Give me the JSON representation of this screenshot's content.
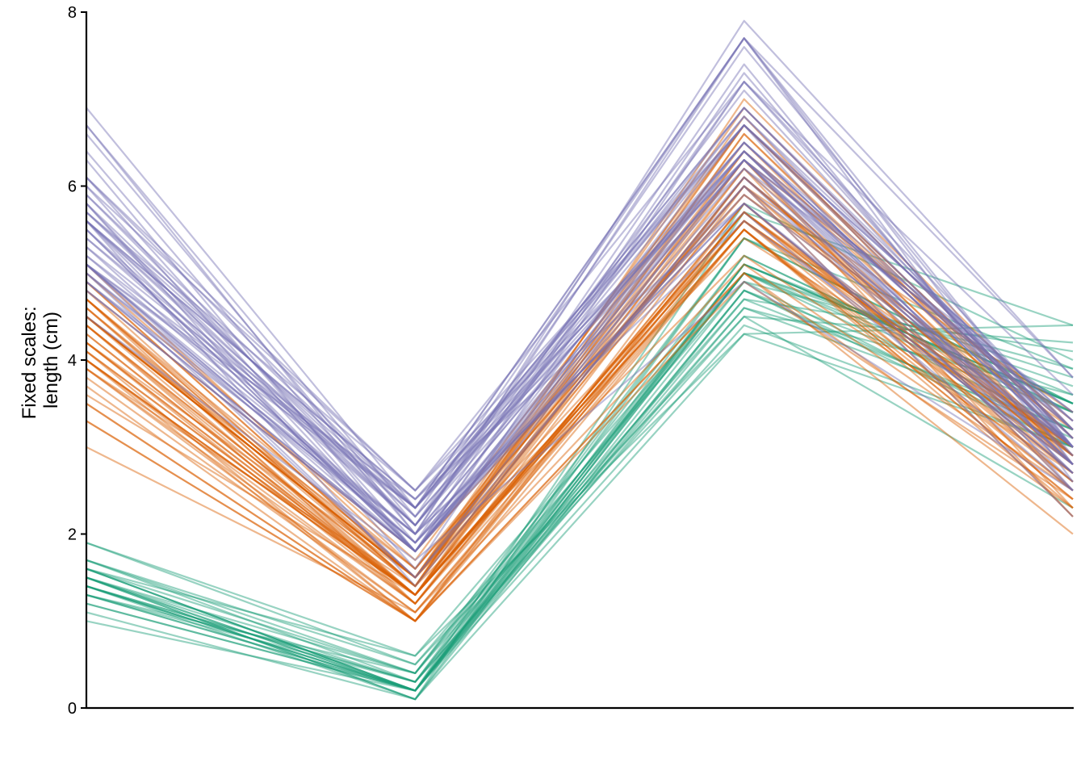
{
  "chart_data": {
    "type": "line",
    "title": "",
    "xlabel": "",
    "ylabel_lines": [
      "Fixed scales:",
      "length (cm)"
    ],
    "x": [
      1,
      2,
      3,
      4
    ],
    "ylim": [
      0,
      8
    ],
    "yticks": [
      "0",
      "2",
      "4",
      "6",
      "8"
    ],
    "grid": false,
    "legend": "none",
    "groups": [
      {
        "color": "#1b9e77",
        "opacity": 0.45,
        "values": [
          [
            1.9,
            0.6,
            4.3,
            4.4
          ],
          [
            1.9,
            0.5,
            4.5,
            4.2
          ],
          [
            1.7,
            0.4,
            4.7,
            4.1
          ],
          [
            1.7,
            0.5,
            4.9,
            3.9
          ],
          [
            1.7,
            0.3,
            5.0,
            3.8
          ],
          [
            1.6,
            0.4,
            5.0,
            3.7
          ],
          [
            1.6,
            0.2,
            5.1,
            3.6
          ],
          [
            1.6,
            0.2,
            5.4,
            3.5
          ],
          [
            1.5,
            0.4,
            5.2,
            3.4
          ],
          [
            1.5,
            0.3,
            5.4,
            3.5
          ],
          [
            1.5,
            0.2,
            5.0,
            3.4
          ],
          [
            1.5,
            0.2,
            4.8,
            3.1
          ],
          [
            1.5,
            0.1,
            5.1,
            3.5
          ],
          [
            1.4,
            0.3,
            4.6,
            3.2
          ],
          [
            1.4,
            0.2,
            5.1,
            3.5
          ],
          [
            1.4,
            0.2,
            4.9,
            3.0
          ],
          [
            1.4,
            0.1,
            4.8,
            3.0
          ],
          [
            1.3,
            0.2,
            4.7,
            3.2
          ],
          [
            1.3,
            0.4,
            5.4,
            3.9
          ],
          [
            1.3,
            0.3,
            4.5,
            2.3
          ],
          [
            1.2,
            0.2,
            5.8,
            4.0
          ],
          [
            1.2,
            0.2,
            5.0,
            3.2
          ],
          [
            1.1,
            0.1,
            4.3,
            3.0
          ],
          [
            1.0,
            0.2,
            4.6,
            3.6
          ],
          [
            1.4,
            0.2,
            5.2,
            3.4
          ],
          [
            1.6,
            0.6,
            5.0,
            3.5
          ],
          [
            1.5,
            0.1,
            5.7,
            4.4
          ],
          [
            1.3,
            0.2,
            4.4,
            3.0
          ],
          [
            1.4,
            0.3,
            5.1,
            3.5
          ],
          [
            1.6,
            0.2,
            4.8,
            3.4
          ]
        ]
      },
      {
        "color": "#d95f02",
        "opacity": 0.45,
        "values": [
          [
            4.7,
            1.4,
            7.0,
            3.2
          ],
          [
            4.5,
            1.5,
            6.4,
            3.2
          ],
          [
            4.9,
            1.5,
            6.9,
            3.1
          ],
          [
            4.0,
            1.3,
            5.5,
            2.3
          ],
          [
            4.6,
            1.5,
            6.5,
            2.8
          ],
          [
            4.5,
            1.3,
            5.7,
            2.8
          ],
          [
            4.7,
            1.6,
            6.3,
            3.3
          ],
          [
            3.3,
            1.0,
            4.9,
            2.4
          ],
          [
            4.6,
            1.3,
            6.6,
            2.9
          ],
          [
            3.9,
            1.4,
            5.2,
            2.7
          ],
          [
            3.5,
            1.0,
            5.0,
            2.0
          ],
          [
            4.2,
            1.5,
            5.9,
            3.0
          ],
          [
            4.0,
            1.0,
            6.0,
            2.2
          ],
          [
            4.7,
            1.4,
            6.1,
            2.9
          ],
          [
            3.6,
            1.3,
            5.6,
            2.9
          ],
          [
            4.4,
            1.4,
            6.7,
            3.1
          ],
          [
            4.5,
            1.5,
            5.6,
            3.0
          ],
          [
            4.1,
            1.0,
            5.8,
            2.7
          ],
          [
            4.5,
            1.5,
            6.2,
            2.2
          ],
          [
            3.9,
            1.1,
            5.6,
            2.5
          ],
          [
            4.8,
            1.8,
            5.9,
            3.2
          ],
          [
            4.0,
            1.3,
            6.1,
            2.8
          ],
          [
            4.9,
            1.5,
            6.3,
            2.5
          ],
          [
            4.7,
            1.2,
            6.1,
            2.8
          ],
          [
            4.3,
            1.3,
            6.4,
            2.9
          ],
          [
            4.4,
            1.4,
            6.6,
            3.0
          ],
          [
            4.8,
            1.4,
            6.8,
            2.8
          ],
          [
            5.0,
            1.7,
            6.7,
            3.0
          ],
          [
            4.5,
            1.5,
            6.0,
            2.9
          ],
          [
            3.5,
            1.0,
            5.7,
            2.6
          ],
          [
            3.8,
            1.1,
            5.5,
            2.4
          ],
          [
            3.7,
            1.0,
            5.5,
            2.4
          ],
          [
            3.9,
            1.2,
            5.8,
            2.7
          ],
          [
            5.1,
            1.6,
            6.0,
            2.7
          ],
          [
            4.5,
            1.5,
            5.4,
            3.0
          ],
          [
            4.5,
            1.6,
            6.0,
            3.4
          ],
          [
            4.7,
            1.5,
            6.7,
            3.1
          ],
          [
            4.4,
            1.3,
            6.3,
            2.3
          ],
          [
            4.1,
            1.3,
            5.6,
            3.0
          ],
          [
            4.0,
            1.3,
            5.5,
            2.5
          ],
          [
            4.4,
            1.2,
            5.5,
            2.6
          ],
          [
            4.6,
            1.4,
            6.1,
            3.0
          ],
          [
            4.0,
            1.2,
            5.8,
            2.6
          ],
          [
            3.3,
            1.0,
            5.0,
            2.3
          ],
          [
            4.2,
            1.3,
            5.6,
            2.7
          ],
          [
            4.2,
            1.2,
            5.7,
            3.0
          ],
          [
            4.2,
            1.3,
            5.7,
            2.9
          ],
          [
            4.3,
            1.3,
            6.2,
            2.9
          ],
          [
            3.0,
            1.1,
            5.1,
            2.5
          ],
          [
            4.1,
            1.3,
            5.7,
            2.8
          ]
        ]
      },
      {
        "color": "#7570b3",
        "opacity": 0.45,
        "values": [
          [
            6.0,
            2.5,
            6.3,
            3.3
          ],
          [
            5.1,
            1.9,
            5.8,
            2.7
          ],
          [
            5.9,
            2.1,
            7.1,
            3.0
          ],
          [
            5.6,
            1.8,
            6.3,
            2.9
          ],
          [
            5.8,
            2.2,
            6.5,
            3.0
          ],
          [
            6.6,
            2.1,
            7.6,
            3.0
          ],
          [
            4.5,
            1.7,
            4.9,
            2.5
          ],
          [
            6.3,
            1.8,
            7.3,
            2.9
          ],
          [
            5.8,
            1.8,
            6.7,
            2.5
          ],
          [
            6.1,
            2.5,
            7.2,
            3.6
          ],
          [
            5.1,
            2.0,
            6.5,
            3.2
          ],
          [
            5.3,
            1.9,
            6.4,
            2.7
          ],
          [
            5.5,
            2.1,
            6.8,
            3.0
          ],
          [
            5.0,
            2.0,
            5.7,
            2.5
          ],
          [
            5.1,
            2.4,
            5.8,
            2.8
          ],
          [
            5.3,
            2.3,
            6.4,
            3.2
          ],
          [
            5.5,
            1.8,
            6.5,
            3.0
          ],
          [
            6.7,
            2.2,
            7.7,
            3.8
          ],
          [
            6.9,
            2.3,
            7.7,
            2.6
          ],
          [
            5.0,
            1.5,
            6.0,
            2.2
          ],
          [
            5.7,
            2.3,
            6.9,
            3.2
          ],
          [
            4.9,
            2.0,
            5.6,
            2.8
          ],
          [
            6.7,
            2.0,
            7.7,
            2.8
          ],
          [
            4.9,
            1.8,
            6.3,
            2.7
          ],
          [
            5.7,
            2.1,
            6.7,
            3.3
          ],
          [
            6.0,
            1.8,
            7.2,
            3.2
          ],
          [
            4.8,
            1.8,
            6.2,
            2.8
          ],
          [
            4.9,
            1.8,
            6.1,
            3.0
          ],
          [
            5.6,
            2.1,
            6.4,
            2.8
          ],
          [
            5.8,
            1.6,
            7.2,
            3.0
          ],
          [
            6.1,
            1.9,
            7.4,
            2.8
          ],
          [
            6.4,
            2.0,
            7.9,
            3.8
          ],
          [
            5.6,
            2.2,
            6.4,
            2.8
          ],
          [
            5.1,
            1.5,
            6.3,
            2.8
          ],
          [
            5.6,
            1.4,
            6.1,
            2.6
          ],
          [
            6.1,
            2.3,
            7.7,
            3.0
          ],
          [
            5.6,
            2.4,
            6.3,
            3.4
          ],
          [
            5.5,
            1.8,
            6.4,
            3.1
          ],
          [
            4.8,
            1.8,
            6.0,
            3.0
          ],
          [
            5.4,
            2.1,
            6.9,
            3.1
          ],
          [
            5.6,
            2.4,
            6.7,
            3.1
          ],
          [
            5.1,
            2.3,
            6.9,
            3.1
          ],
          [
            5.1,
            1.9,
            5.8,
            2.7
          ],
          [
            5.9,
            2.3,
            6.8,
            3.2
          ],
          [
            5.7,
            2.5,
            6.7,
            3.3
          ],
          [
            5.2,
            2.3,
            6.7,
            3.0
          ],
          [
            5.0,
            1.9,
            6.3,
            2.5
          ],
          [
            5.2,
            2.0,
            6.5,
            3.0
          ],
          [
            5.4,
            2.3,
            6.2,
            3.4
          ],
          [
            5.1,
            1.8,
            5.9,
            3.0
          ]
        ]
      }
    ]
  }
}
